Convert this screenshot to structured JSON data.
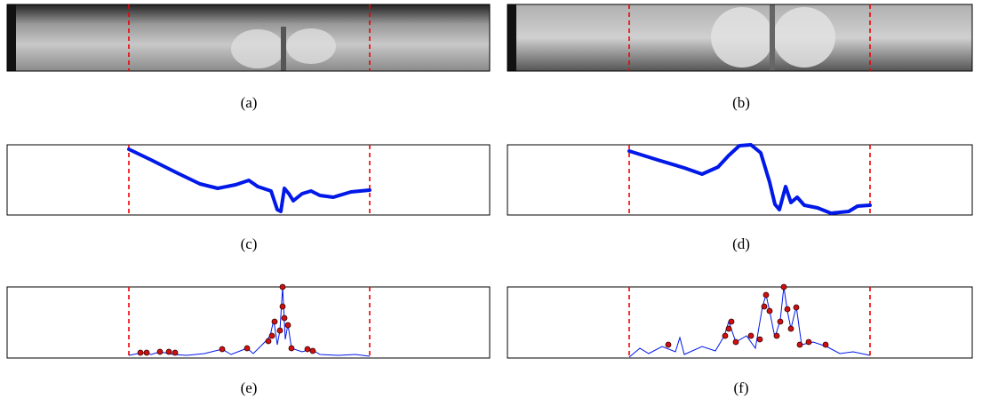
{
  "captions": [
    "(a)",
    "(b)",
    "(c)",
    "(d)",
    "(e)",
    "(f)"
  ]
}
